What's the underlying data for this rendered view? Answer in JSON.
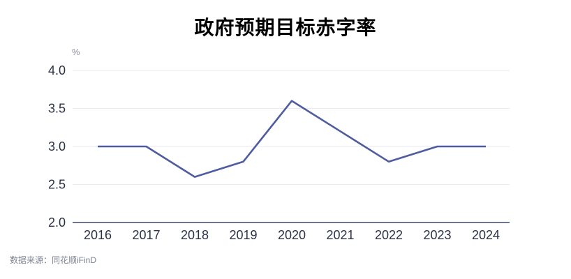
{
  "title": "政府预期目标赤字率",
  "source_note": "数据来源：同花顺iFinD",
  "chart_data": {
    "type": "line",
    "title": "政府预期目标赤字率",
    "unit_label": "%",
    "categories": [
      "2016",
      "2017",
      "2018",
      "2019",
      "2020",
      "2021",
      "2022",
      "2023",
      "2024"
    ],
    "series": [
      {
        "name": "政府预期目标赤字率",
        "values": [
          3.0,
          3.0,
          2.6,
          2.8,
          3.6,
          3.2,
          2.8,
          3.0,
          3.0
        ]
      }
    ],
    "ylim": [
      2.0,
      4.0
    ],
    "yticks": [
      2.0,
      2.5,
      3.0,
      3.5,
      4.0
    ],
    "ytick_decimals": 1,
    "grid": true,
    "legend": "none",
    "colors": {
      "line": "#4f5da0",
      "grid": "#e9eaf2",
      "axis": "#3d4968",
      "tick_label": "#2c3246",
      "unit_label": "#8a8f9c",
      "source": "#7d8291",
      "title": "#000000",
      "background": "#ffffff"
    }
  }
}
